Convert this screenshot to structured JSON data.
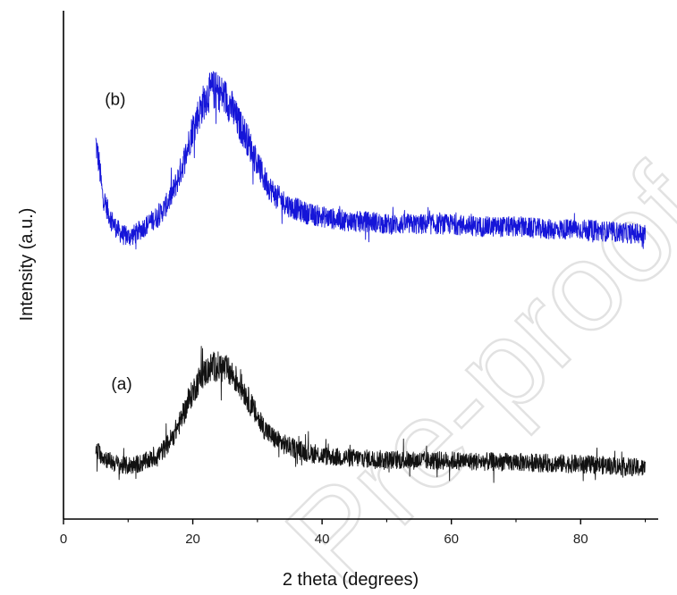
{
  "chart_data": {
    "type": "line",
    "title": "",
    "xlabel": "2 theta (degrees)",
    "ylabel": "Intensity (a.u.)",
    "xlim": [
      0,
      92
    ],
    "ylim": [
      0,
      1
    ],
    "xticks": [
      0,
      20,
      40,
      60,
      80
    ],
    "y_ticks_shown": false,
    "grid": false,
    "legend": "none",
    "watermark": "Pre-proof",
    "series": [
      {
        "name": "(b)",
        "color": "#1515d8",
        "x": [
          5,
          5.5,
          6,
          7,
          8,
          9,
          10,
          11,
          12,
          13,
          14,
          15,
          16,
          17,
          18,
          19,
          20,
          21,
          22,
          23,
          24,
          25,
          26,
          27,
          28,
          29,
          30,
          31,
          32,
          33,
          34,
          35,
          36,
          38,
          40,
          42,
          45,
          48,
          50,
          55,
          60,
          65,
          70,
          75,
          80,
          85,
          90
        ],
        "values": [
          0.74,
          0.7,
          0.64,
          0.6,
          0.575,
          0.56,
          0.555,
          0.56,
          0.57,
          0.58,
          0.59,
          0.6,
          0.62,
          0.645,
          0.68,
          0.72,
          0.77,
          0.8,
          0.83,
          0.845,
          0.84,
          0.83,
          0.81,
          0.78,
          0.76,
          0.73,
          0.7,
          0.67,
          0.65,
          0.635,
          0.625,
          0.615,
          0.61,
          0.6,
          0.595,
          0.59,
          0.585,
          0.585,
          0.58,
          0.58,
          0.58,
          0.575,
          0.575,
          0.57,
          0.57,
          0.565,
          0.56
        ],
        "noise": 0.02
      },
      {
        "name": "(a)",
        "color": "#111111",
        "x": [
          5,
          6,
          7,
          8,
          9,
          10,
          11,
          12,
          13,
          14,
          15,
          16,
          17,
          18,
          19,
          20,
          21,
          22,
          23,
          24,
          25,
          26,
          27,
          28,
          29,
          30,
          31,
          32,
          33,
          34,
          35,
          36,
          38,
          40,
          42,
          45,
          48,
          50,
          55,
          60,
          65,
          70,
          75,
          80,
          85,
          90
        ],
        "values": [
          0.135,
          0.125,
          0.115,
          0.11,
          0.105,
          0.105,
          0.107,
          0.11,
          0.115,
          0.12,
          0.13,
          0.145,
          0.165,
          0.19,
          0.22,
          0.25,
          0.275,
          0.29,
          0.3,
          0.3,
          0.295,
          0.285,
          0.27,
          0.25,
          0.225,
          0.2,
          0.18,
          0.165,
          0.155,
          0.148,
          0.142,
          0.138,
          0.13,
          0.125,
          0.122,
          0.12,
          0.118,
          0.117,
          0.115,
          0.115,
          0.113,
          0.112,
          0.11,
          0.108,
          0.105,
          0.1
        ],
        "noise": 0.018
      }
    ],
    "annotations": [
      {
        "text": "(b)",
        "x": 8,
        "y": 0.815
      },
      {
        "text": "(a)",
        "x": 9,
        "y": 0.255
      }
    ]
  }
}
